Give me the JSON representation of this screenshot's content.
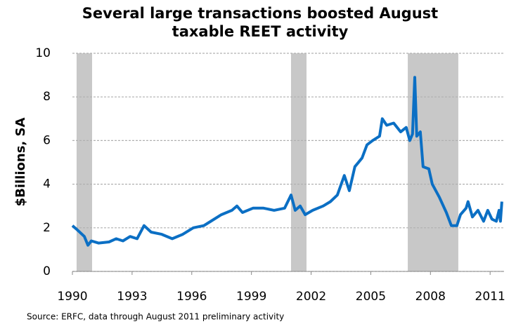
{
  "chart_data": {
    "type": "line",
    "title": "Several large transactions boosted August taxable REET activity",
    "y_label": "$Billions, SA",
    "source": "Source: ERFC, data through August 2011 preliminary activity",
    "xlim": [
      1990,
      2011.7
    ],
    "xticks": [
      1990,
      1993,
      1996,
      1999,
      2002,
      2005,
      2008,
      2011
    ],
    "ylim": [
      0,
      10
    ],
    "yticks": [
      0,
      2,
      4,
      6,
      8,
      10
    ],
    "grid": true,
    "shaded_regions": [
      [
        1990.21,
        1990.99
      ],
      [
        2000.99,
        2001.77
      ],
      [
        2006.86,
        2009.4
      ]
    ],
    "shade_color": "#c8c8c8",
    "series": [
      {
        "color": "#0b6fc4",
        "x": [
          1990.0,
          1990.25,
          1990.6,
          1990.78,
          1990.95,
          1991.31,
          1991.84,
          1992.2,
          1992.54,
          1992.9,
          1993.25,
          1993.6,
          1993.96,
          1994.49,
          1995.02,
          1995.55,
          1996.08,
          1996.61,
          1996.96,
          1997.49,
          1998.02,
          1998.27,
          1998.55,
          1999.08,
          1999.61,
          2000.14,
          2000.67,
          2000.99,
          2001.2,
          2001.45,
          2001.7,
          2002.08,
          2002.61,
          2002.97,
          2003.32,
          2003.67,
          2003.92,
          2004.2,
          2004.56,
          2004.81,
          2005.09,
          2005.44,
          2005.58,
          2005.8,
          2006.15,
          2006.5,
          2006.78,
          2006.96,
          2007.1,
          2007.21,
          2007.31,
          2007.49,
          2007.63,
          2007.92,
          2008.09,
          2008.45,
          2008.8,
          2009.05,
          2009.33,
          2009.51,
          2009.79,
          2009.89,
          2010.11,
          2010.39,
          2010.67,
          2010.88,
          2011.09,
          2011.31,
          2011.45,
          2011.52,
          2011.59
        ],
        "values": [
          2.1,
          1.9,
          1.6,
          1.2,
          1.4,
          1.3,
          1.35,
          1.5,
          1.4,
          1.6,
          1.5,
          2.1,
          1.8,
          1.7,
          1.5,
          1.7,
          2.0,
          2.1,
          2.3,
          2.6,
          2.8,
          3.0,
          2.7,
          2.9,
          2.9,
          2.8,
          2.9,
          3.5,
          2.8,
          3.0,
          2.6,
          2.8,
          3.0,
          3.2,
          3.5,
          4.4,
          3.7,
          4.8,
          5.2,
          5.8,
          6.0,
          6.2,
          7.0,
          6.7,
          6.8,
          6.4,
          6.6,
          6.0,
          6.3,
          8.9,
          6.2,
          6.4,
          4.8,
          4.7,
          4.0,
          3.4,
          2.7,
          2.1,
          2.1,
          2.6,
          2.9,
          3.2,
          2.5,
          2.8,
          2.3,
          2.8,
          2.4,
          2.3,
          2.8,
          2.3,
          3.2
        ]
      }
    ]
  }
}
